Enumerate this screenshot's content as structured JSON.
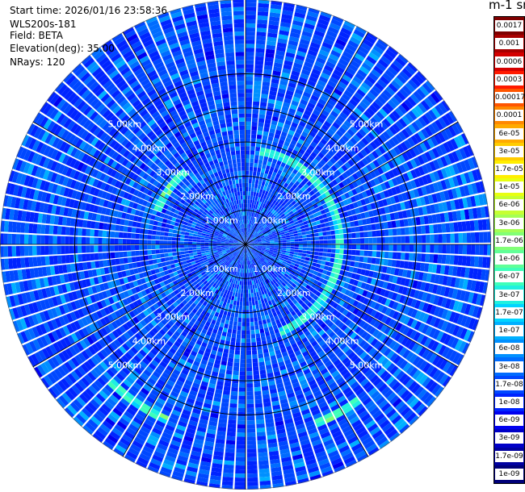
{
  "header": {
    "start_time": "Start time: 2026/01/16 23:58:36",
    "instrument": "WLS200s-181",
    "field": "Field: BETA",
    "elevation": "Elevation(deg): 35.00",
    "nrays": "NRays: 120"
  },
  "colorbar": {
    "title": "m-1 sr-1",
    "labels": [
      "0.0017",
      "0.001",
      "0.0006",
      "0.0003",
      "0.00017",
      "0.0001",
      "6e-05",
      "3e-05",
      "1.7e-05",
      "1e-05",
      "6e-06",
      "3e-06",
      "1.7e-06",
      "1e-06",
      "6e-07",
      "3e-07",
      "1.7e-07",
      "1e-07",
      "6e-08",
      "3e-08",
      "1.7e-08",
      "1e-08",
      "6e-09",
      "3e-09",
      "1.7e-09",
      "1e-09"
    ],
    "colors": [
      "#7f0000",
      "#a80000",
      "#d40000",
      "#ff1a00",
      "#ff5500",
      "#ff8800",
      "#ffaa00",
      "#ffcc00",
      "#ffee00",
      "#e8ff10",
      "#c6ff32",
      "#a4ff54",
      "#82ff76",
      "#60ff98",
      "#3effba",
      "#20f0e0",
      "#00d4ff",
      "#00b0ff",
      "#0090ff",
      "#006cff",
      "#0048ff",
      "#0024ff",
      "#0000f0",
      "#0000c8",
      "#0000a0",
      "#000078"
    ]
  },
  "chart_data": {
    "type": "heatmap",
    "projection": "polar-ppi",
    "nrays": 120,
    "elevation_deg": 35.0,
    "range_rings_km": [
      1.0,
      2.0,
      3.0,
      4.0,
      5.0
    ],
    "range_ring_labels": [
      "1.00km",
      "2.00km",
      "3.00km",
      "4.00km",
      "5.00km"
    ],
    "max_range_km": 5.8,
    "background_level": "1e-08 to 3e-08",
    "features": [
      {
        "description": "enhanced backscatter arc",
        "range_km": [
          2.6,
          2.9
        ],
        "azimuth_deg": [
          10,
          160
        ],
        "level": "1.7e-07 to 1e-06"
      },
      {
        "description": "enhanced backscatter arc",
        "range_km": [
          2.6,
          2.9
        ],
        "azimuth_deg": [
          290,
          320
        ],
        "level": "1.7e-07 to 1e-06"
      },
      {
        "description": "enhanced backscatter patch",
        "range_km": [
          5.5,
          5.8
        ],
        "azimuth_deg": [
          145,
          160
        ],
        "level": "1e-06 to 1.7e-05"
      },
      {
        "description": "enhanced backscatter patch",
        "range_km": [
          5.5,
          5.8
        ],
        "azimuth_deg": [
          205,
          225
        ],
        "level": "1e-06 to 1.7e-05"
      }
    ]
  }
}
